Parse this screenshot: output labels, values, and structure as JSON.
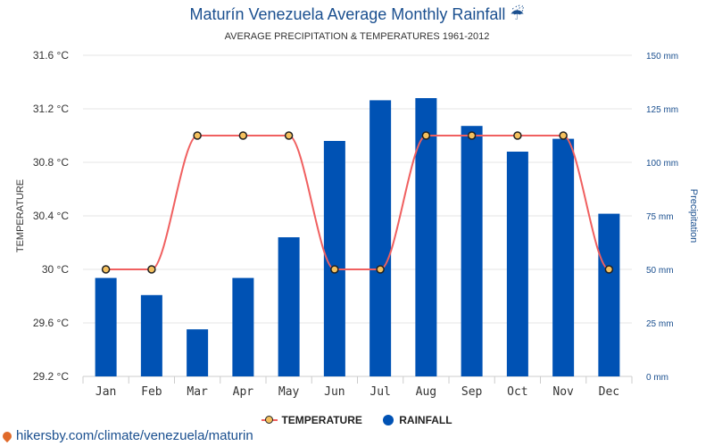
{
  "chart_data": {
    "type": "bar",
    "title": "Maturín Venezuela Average Monthly Rainfall ☔",
    "subtitle": "AVERAGE PRECIPITATION & TEMPERATURES 1961-2012",
    "categories": [
      "Jan",
      "Feb",
      "Mar",
      "Apr",
      "May",
      "Jun",
      "Jul",
      "Aug",
      "Sep",
      "Oct",
      "Nov",
      "Dec"
    ],
    "series": [
      {
        "name": "TEMPERATURE",
        "type": "line",
        "axis": "left",
        "color": "#f06060",
        "marker_color": "#f5c15e",
        "values": [
          30.0,
          30.0,
          31.0,
          31.0,
          31.0,
          30.0,
          30.0,
          31.0,
          31.0,
          31.0,
          31.0,
          30.0
        ]
      },
      {
        "name": "RAINFALL",
        "type": "bar",
        "axis": "right",
        "color": "#0052b4",
        "values": [
          46,
          38,
          22,
          46,
          65,
          110,
          129,
          130,
          117,
          105,
          111,
          76
        ]
      }
    ],
    "ylabel": "TEMPERATURE",
    "y2label": "Precipitation",
    "ylim": [
      29.2,
      31.6
    ],
    "y2lim": [
      0,
      150
    ],
    "yticks": [
      "29.2 °C",
      "29.6 °C",
      "30 °C",
      "30.4 °C",
      "30.8 °C",
      "31.2 °C",
      "31.6 °C"
    ],
    "y2ticks": [
      "0 mm",
      "25 mm",
      "50 mm",
      "75 mm",
      "100 mm",
      "125 mm",
      "150 mm"
    ],
    "grid": true,
    "legend": "bottom-center"
  },
  "source_text": "hikersby.com/climate/venezuela/maturin"
}
